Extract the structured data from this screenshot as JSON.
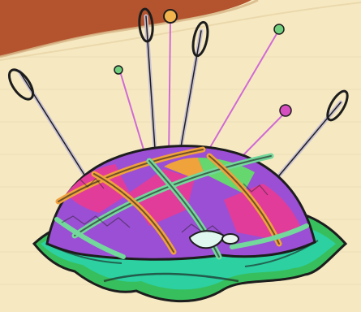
{
  "colors": {
    "background": "#f6e9c2",
    "header_band": "#b3542e",
    "header_band_dark": "#8a3a1f",
    "cushion_magenta": "#e23c9a",
    "cushion_purple": "#9b4fd4",
    "cushion_orange": "#f0a23b",
    "cushion_green": "#66d66f",
    "leaf_teal": "#27d3a6",
    "leaf_green": "#37bf5d",
    "outline": "#1d1d1d",
    "pin_line": "#d06ad5",
    "pin_head_green": "#71d07e",
    "pin_head_orange": "#f2b44d",
    "pin_head_magenta": "#d64fc1"
  },
  "icons": {
    "pincushion": "pincushion-icon",
    "needle": "needle-icon",
    "pin": "pin-icon"
  }
}
